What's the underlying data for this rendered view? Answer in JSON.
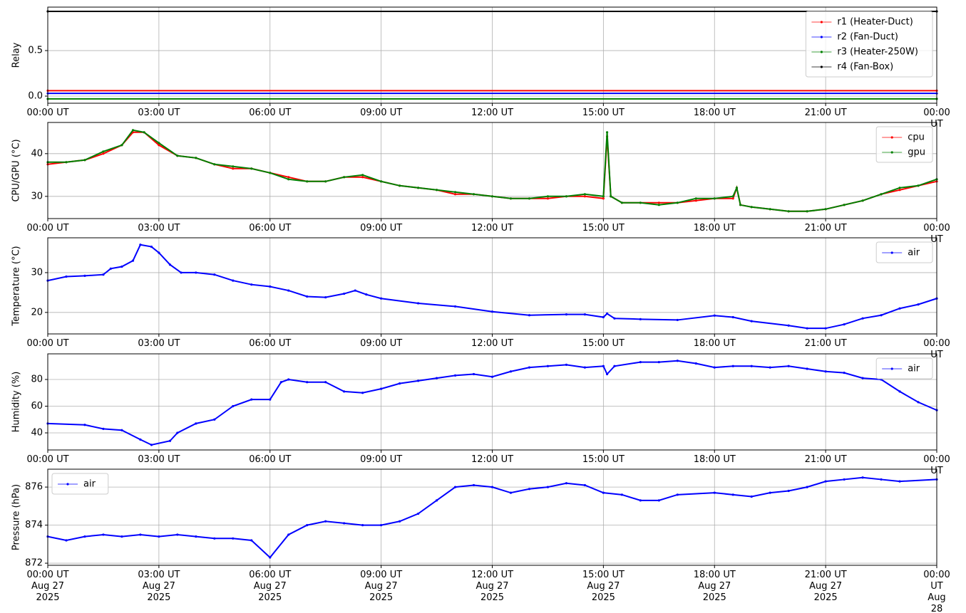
{
  "chart_data": [
    {
      "type": "line",
      "ylabel": "Relay",
      "legend": "upper right",
      "grid": true,
      "x": [
        0,
        24
      ],
      "series": [
        {
          "name": "r1 (Heater-Duct)",
          "color": "#ff0000",
          "values": [
            0.06,
            0.06
          ]
        },
        {
          "name": "r2 (Fan-Duct)",
          "color": "#0000ff",
          "values": [
            0.03,
            0.03
          ]
        },
        {
          "name": "r3 (Heater-250W)",
          "color": "#008000",
          "values": [
            -0.03,
            -0.03
          ]
        },
        {
          "name": "r4 (Fan-Box)",
          "color": "#000000",
          "values": [
            0.93,
            0.93
          ]
        }
      ],
      "xlim": [
        0,
        24
      ],
      "xticks": [
        {
          "value": 0,
          "label": "00:00 UT"
        },
        {
          "value": 3,
          "label": "03:00 UT"
        },
        {
          "value": 6,
          "label": "06:00 UT"
        },
        {
          "value": 9,
          "label": "09:00 UT"
        },
        {
          "value": 12,
          "label": "12:00 UT"
        },
        {
          "value": 15,
          "label": "15:00 UT"
        },
        {
          "value": 18,
          "label": "18:00 UT"
        },
        {
          "value": 21,
          "label": "21:00 UT"
        },
        {
          "value": 24,
          "label": "00:00 UT"
        }
      ],
      "ylim": [
        -0.078,
        0.977
      ],
      "yticks": [
        {
          "value": 0,
          "label": "0.0"
        },
        0.5
      ]
    },
    {
      "type": "line",
      "ylabel": "CPU/GPU (°C)",
      "legend": "upper right",
      "grid": true,
      "x": [
        0,
        0.5,
        1,
        1.5,
        2,
        2.3,
        2.6,
        3,
        3.5,
        4,
        4.5,
        5,
        5.5,
        6,
        6.5,
        7,
        7.5,
        8,
        8.5,
        9,
        9.5,
        10,
        10.5,
        11,
        11.5,
        12,
        12.5,
        13,
        13.5,
        14,
        14.5,
        15,
        15.1,
        15.2,
        15.5,
        16,
        16.5,
        17,
        17.5,
        18,
        18.5,
        18.6,
        18.7,
        19,
        19.5,
        20,
        20.5,
        21,
        21.5,
        22,
        22.5,
        23,
        23.5,
        24
      ],
      "series": [
        {
          "name": "cpu",
          "color": "#ff0000",
          "values": [
            37.5,
            38,
            38.5,
            40,
            42,
            45,
            45,
            42,
            39.5,
            39,
            37.5,
            36.5,
            36.5,
            35.5,
            34.5,
            33.5,
            33.5,
            34.5,
            34.5,
            33.5,
            32.5,
            32,
            31.5,
            30.5,
            30.5,
            30,
            29.5,
            29.5,
            29.5,
            30,
            30,
            29.5,
            44,
            30,
            28.5,
            28.5,
            28.5,
            28.5,
            29,
            29.5,
            29.5,
            32,
            28,
            27.5,
            27,
            26.5,
            26.5,
            27,
            28,
            29,
            30.5,
            31.5,
            32.5,
            33.5
          ]
        },
        {
          "name": "gpu",
          "color": "#008000",
          "values": [
            38,
            38,
            38.5,
            40.5,
            42,
            45.5,
            45,
            42.5,
            39.5,
            39,
            37.5,
            37,
            36.5,
            35.5,
            34,
            33.5,
            33.5,
            34.5,
            35,
            33.5,
            32.5,
            32,
            31.5,
            31,
            30.5,
            30,
            29.5,
            29.5,
            30,
            30,
            30.5,
            30,
            45,
            30,
            28.5,
            28.5,
            28,
            28.5,
            29.5,
            29.5,
            30,
            32,
            28,
            27.5,
            27,
            26.5,
            26.5,
            27,
            28,
            29,
            30.5,
            32,
            32.5,
            34
          ]
        }
      ],
      "xlim": [
        0,
        24
      ],
      "xticks": [
        {
          "value": 0,
          "label": "00:00 UT"
        },
        {
          "value": 3,
          "label": "03:00 UT"
        },
        {
          "value": 6,
          "label": "06:00 UT"
        },
        {
          "value": 9,
          "label": "09:00 UT"
        },
        {
          "value": 12,
          "label": "12:00 UT"
        },
        {
          "value": 15,
          "label": "15:00 UT"
        },
        {
          "value": 18,
          "label": "18:00 UT"
        },
        {
          "value": 21,
          "label": "21:00 UT"
        },
        {
          "value": 24,
          "label": "00:00 UT"
        }
      ],
      "ylim": [
        24.8,
        47.3
      ],
      "yticks": [
        30,
        40
      ]
    },
    {
      "type": "line",
      "ylabel": "Temperature (°C)",
      "legend": "upper right",
      "grid": true,
      "x": [
        0,
        0.5,
        1,
        1.5,
        1.7,
        2,
        2.3,
        2.5,
        2.8,
        3,
        3.3,
        3.6,
        4,
        4.5,
        5,
        5.5,
        6,
        6.5,
        7,
        7.5,
        8,
        8.3,
        8.6,
        9,
        10,
        11,
        12,
        13,
        14,
        14.5,
        15,
        15.1,
        15.3,
        16,
        17,
        18,
        18.5,
        19,
        20,
        20.5,
        21,
        21.5,
        22,
        22.5,
        23,
        23.5,
        24
      ],
      "series": [
        {
          "name": "air",
          "color": "#0000ff",
          "values": [
            28,
            29,
            29.2,
            29.5,
            31,
            31.5,
            33,
            37,
            36.5,
            35,
            32,
            30,
            30,
            29.5,
            28,
            27,
            26.5,
            25.5,
            24,
            23.8,
            24.7,
            25.5,
            24.5,
            23.5,
            22.3,
            21.5,
            20.2,
            19.3,
            19.5,
            19.5,
            18.8,
            19.7,
            18.5,
            18.3,
            18.1,
            19.2,
            18.8,
            17.8,
            16.7,
            16,
            16,
            17,
            18.5,
            19.3,
            21,
            22,
            23.5
          ]
        }
      ],
      "xlim": [
        0,
        24
      ],
      "xticks": [
        {
          "value": 0,
          "label": "00:00 UT"
        },
        {
          "value": 3,
          "label": "03:00 UT"
        },
        {
          "value": 6,
          "label": "06:00 UT"
        },
        {
          "value": 9,
          "label": "09:00 UT"
        },
        {
          "value": 12,
          "label": "12:00 UT"
        },
        {
          "value": 15,
          "label": "15:00 UT"
        },
        {
          "value": 18,
          "label": "18:00 UT"
        },
        {
          "value": 21,
          "label": "21:00 UT"
        },
        {
          "value": 24,
          "label": "00:00 UT"
        }
      ],
      "ylim": [
        14.6,
        38.75
      ],
      "yticks": [
        20,
        30
      ]
    },
    {
      "type": "line",
      "ylabel": "Humidity (%)",
      "legend": "upper right",
      "grid": true,
      "x": [
        0,
        1,
        1.5,
        2,
        2.5,
        2.8,
        3.3,
        3.5,
        4,
        4.5,
        5,
        5.5,
        6,
        6.3,
        6.5,
        7,
        7.5,
        8,
        8.5,
        9,
        9.5,
        10,
        10.5,
        11,
        11.5,
        12,
        12.5,
        13,
        13.5,
        14,
        14.5,
        15,
        15.1,
        15.3,
        16,
        16.5,
        17,
        17.5,
        18,
        18.5,
        19,
        19.5,
        20,
        20.5,
        21,
        21.5,
        22,
        22.5,
        23,
        23.5,
        24
      ],
      "series": [
        {
          "name": "air",
          "color": "#0000ff",
          "values": [
            47,
            46,
            43,
            42,
            35,
            31,
            34,
            40,
            47,
            50,
            60,
            65,
            65,
            78,
            80,
            78,
            78,
            71,
            70,
            73,
            77,
            79,
            81,
            83,
            84,
            82,
            86,
            89,
            90,
            91,
            89,
            90,
            84,
            90,
            93,
            93,
            94,
            92,
            89,
            90,
            90,
            89,
            90,
            88,
            86,
            85,
            81,
            80,
            71,
            63,
            57
          ]
        }
      ],
      "xlim": [
        0,
        24
      ],
      "xticks": [
        {
          "value": 0,
          "label": "00:00 UT"
        },
        {
          "value": 3,
          "label": "03:00 UT"
        },
        {
          "value": 6,
          "label": "06:00 UT"
        },
        {
          "value": 9,
          "label": "09:00 UT"
        },
        {
          "value": 12,
          "label": "12:00 UT"
        },
        {
          "value": 15,
          "label": "15:00 UT"
        },
        {
          "value": 18,
          "label": "18:00 UT"
        },
        {
          "value": 21,
          "label": "21:00 UT"
        },
        {
          "value": 24,
          "label": "00:00 UT"
        }
      ],
      "ylim": [
        27.2,
        99.2
      ],
      "yticks": [
        40,
        60,
        80
      ]
    },
    {
      "type": "line",
      "ylabel": "Pressure (hPa)",
      "legend": "upper left",
      "grid": true,
      "x": [
        0,
        0.5,
        1,
        1.5,
        2,
        2.5,
        3,
        3.5,
        4,
        4.5,
        5,
        5.5,
        6,
        6.5,
        7,
        7.5,
        8,
        8.5,
        9,
        9.5,
        10,
        10.5,
        11,
        11.5,
        12,
        12.5,
        13,
        13.5,
        14,
        14.5,
        15,
        15.5,
        16,
        16.5,
        17,
        18,
        18.5,
        19,
        19.5,
        20,
        20.5,
        21,
        21.5,
        22,
        22.5,
        23,
        24
      ],
      "series": [
        {
          "name": "air",
          "color": "#0000ff",
          "values": [
            873.4,
            873.2,
            873.4,
            873.5,
            873.4,
            873.5,
            873.4,
            873.5,
            873.4,
            873.3,
            873.3,
            873.2,
            872.3,
            873.5,
            874.0,
            874.2,
            874.1,
            874.0,
            874.0,
            874.2,
            874.6,
            875.3,
            876.0,
            876.1,
            876.0,
            875.7,
            875.9,
            876.0,
            876.2,
            876.1,
            875.7,
            875.6,
            875.3,
            875.3,
            875.6,
            875.7,
            875.6,
            875.5,
            875.7,
            875.8,
            876.0,
            876.3,
            876.4,
            876.5,
            876.4,
            876.3,
            876.4
          ]
        }
      ],
      "xlim": [
        0,
        24
      ],
      "xticks": [
        {
          "value": 0,
          "label": "00:00 UT\nAug 27\n2025"
        },
        {
          "value": 3,
          "label": "03:00 UT\nAug 27\n2025"
        },
        {
          "value": 6,
          "label": "06:00 UT\nAug 27\n2025"
        },
        {
          "value": 9,
          "label": "09:00 UT\nAug 27\n2025"
        },
        {
          "value": 12,
          "label": "12:00 UT\nAug 27\n2025"
        },
        {
          "value": 15,
          "label": "15:00 UT\nAug 27\n2025"
        },
        {
          "value": 18,
          "label": "18:00 UT\nAug 27\n2025"
        },
        {
          "value": 21,
          "label": "21:00 UT\nAug 27\n2025"
        },
        {
          "value": 24,
          "label": "00:00 UT\nAug 28\n2025"
        }
      ],
      "ylim": [
        871.89,
        876.94
      ],
      "yticks": [
        872,
        874,
        876
      ]
    }
  ]
}
